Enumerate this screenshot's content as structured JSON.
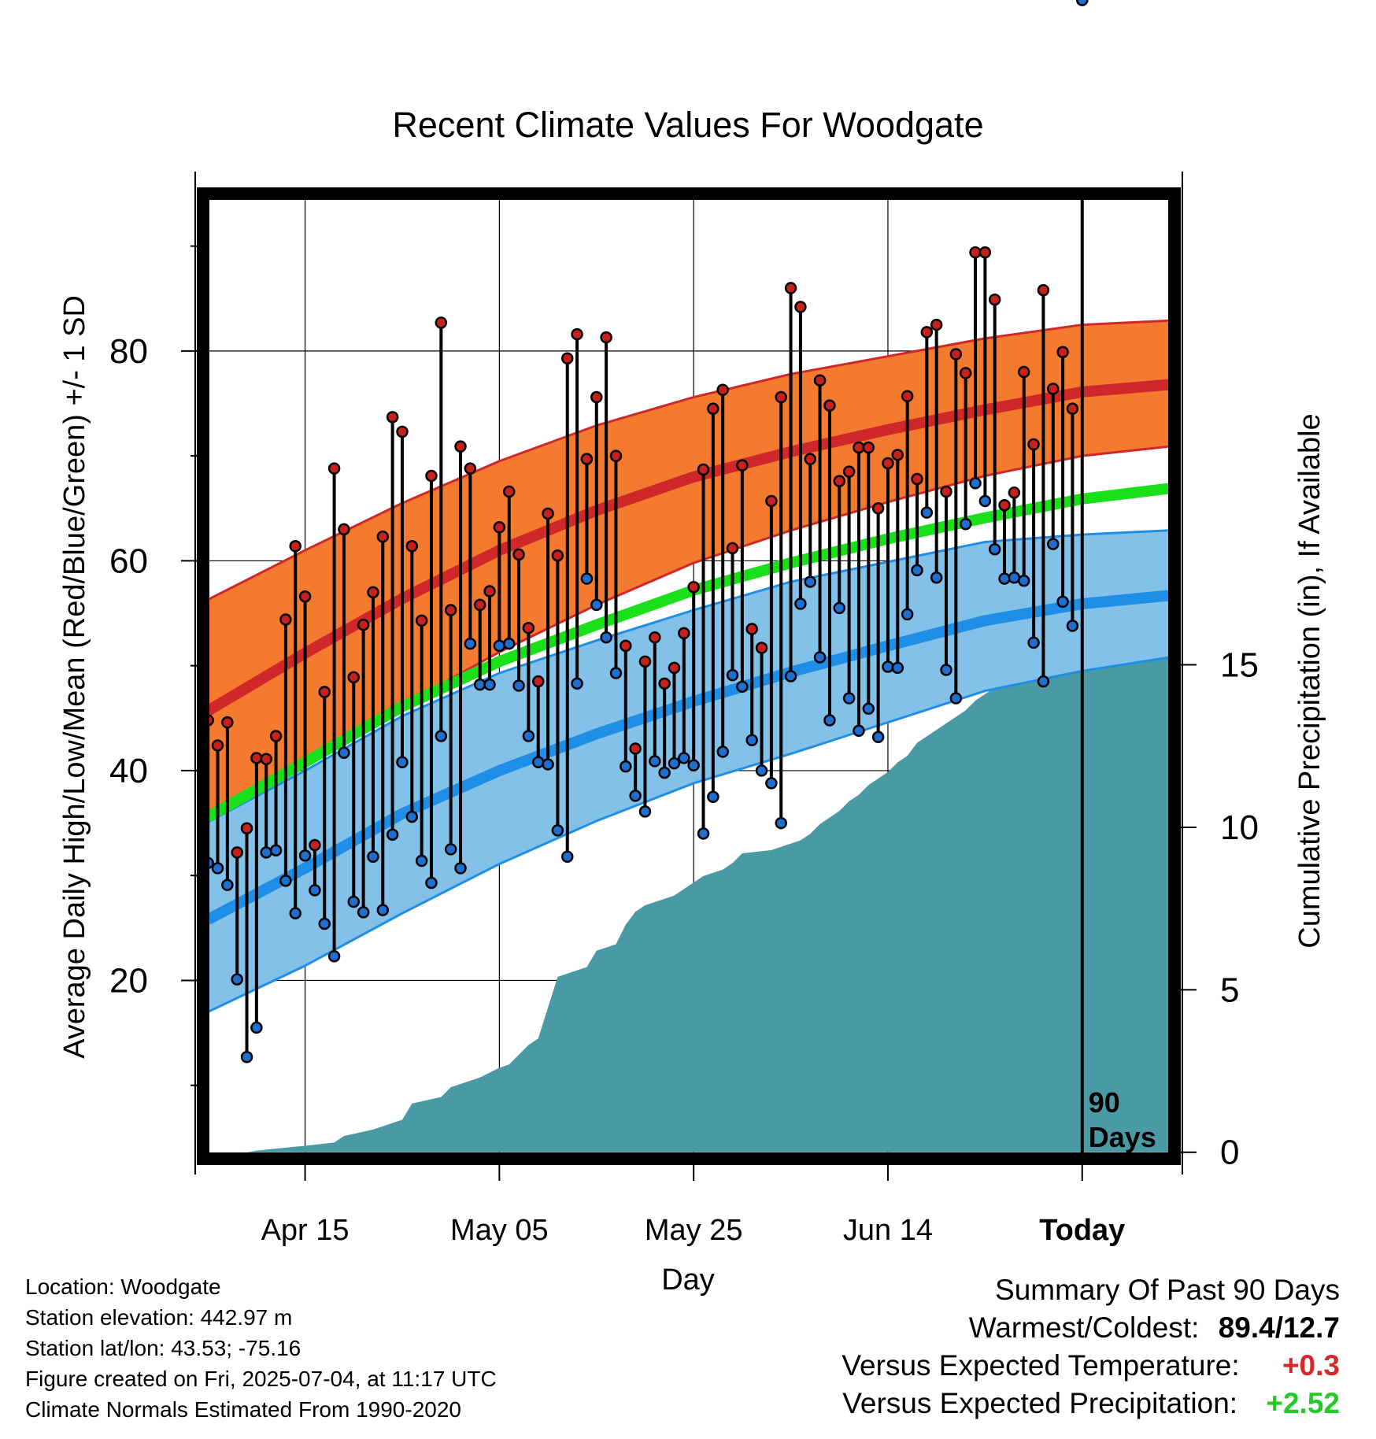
{
  "chart_data": {
    "type": "line",
    "title": "Recent Climate Values For Woodgate",
    "xlabel": "Day",
    "ylabel": "Average Daily High/Low/Mean (Red/Blue/Green) +/- 1 SD",
    "y2label": "Cumulative Precipitation (in), If Available",
    "x_tick_labels": [
      "Apr 15",
      "May 05",
      "May 25",
      "Jun 14",
      "Today"
    ],
    "x_tick_days": [
      10,
      30,
      50,
      70,
      90
    ],
    "xlim": [
      -0.5,
      99.5
    ],
    "ylim": [
      3,
      95
    ],
    "y_ticks": [
      20,
      40,
      60,
      80
    ],
    "y_minor_ticks": [
      10,
      30,
      50,
      70,
      90
    ],
    "y2lim": [
      -0.2,
      29.5
    ],
    "y2_ticks": [
      0,
      5,
      10,
      15
    ],
    "today_day": 90,
    "today_label": [
      "90",
      "Days"
    ],
    "grid": true,
    "colors": {
      "high_band": "#f37a2f",
      "high_line": "#d0282a",
      "low_band": "#83c1e8",
      "low_line": "#1f8ee6",
      "mean_line": "#19e019",
      "precip": "#4a9aa5",
      "high_marker": "#c8201d",
      "low_marker": "#1f6fd0",
      "versus_temp": "#d62828",
      "versus_precip": "#22cc22"
    },
    "normals": {
      "days": [
        0,
        10,
        20,
        30,
        40,
        50,
        60,
        70,
        80,
        90,
        99
      ],
      "high_mean": [
        45.7,
        51.2,
        56.4,
        61.0,
        64.8,
        68.0,
        70.4,
        72.5,
        74.4,
        76.1,
        76.8
      ],
      "high_plus_sd": [
        56.3,
        61.0,
        65.5,
        69.5,
        72.9,
        75.6,
        77.8,
        79.5,
        81.2,
        82.5,
        82.9
      ],
      "high_minus_sd": [
        34.9,
        40.8,
        46.2,
        51.3,
        55.8,
        59.8,
        62.9,
        65.6,
        68.1,
        70.0,
        70.9
      ],
      "mean": [
        35.6,
        40.8,
        46.1,
        50.4,
        53.9,
        57.2,
        59.8,
        62.1,
        64.1,
        65.9,
        66.9
      ],
      "low_mean": [
        25.8,
        30.7,
        35.9,
        40.0,
        43.5,
        46.6,
        49.4,
        51.9,
        54.3,
        55.9,
        56.7
      ],
      "low_plus_sd": [
        35.1,
        40.0,
        45.2,
        49.3,
        52.4,
        55.3,
        58.0,
        59.9,
        61.8,
        62.5,
        62.9
      ],
      "low_minus_sd": [
        17.0,
        21.4,
        26.4,
        31.1,
        35.2,
        38.8,
        41.6,
        44.6,
        47.6,
        49.5,
        50.8
      ]
    },
    "daily_days": [
      0,
      1,
      2,
      3,
      4,
      5,
      6,
      7,
      8,
      9,
      10,
      11,
      12,
      13,
      14,
      15,
      16,
      17,
      18,
      19,
      20,
      21,
      22,
      23,
      24,
      25,
      26,
      27,
      28,
      29,
      30,
      31,
      32,
      33,
      34,
      35,
      36,
      37,
      38,
      39,
      40,
      41,
      42,
      43,
      44,
      45,
      46,
      47,
      48,
      49,
      50,
      51,
      52,
      53,
      54,
      55,
      56,
      57,
      58,
      59,
      60,
      61,
      62,
      63,
      64,
      65,
      66,
      67,
      68,
      69,
      70,
      71,
      72,
      73,
      74,
      75,
      76,
      77,
      78,
      79,
      80,
      81,
      82,
      83,
      84,
      85,
      86,
      87,
      88,
      89,
      90
    ],
    "daily_high": [
      44.8,
      42.4,
      44.6,
      32.2,
      34.5,
      41.2,
      41.1,
      43.3,
      54.4,
      61.4,
      56.6,
      32.9,
      47.5,
      68.8,
      63.0,
      48.9,
      53.9,
      57.0,
      62.3,
      73.7,
      72.3,
      61.4,
      54.3,
      68.1,
      82.7,
      55.3,
      70.9,
      68.8,
      55.8,
      57.1,
      63.2,
      66.6,
      60.6,
      53.6,
      48.5,
      64.5,
      60.5,
      79.3,
      81.6,
      69.7,
      75.6,
      81.3,
      70.0,
      51.9,
      42.1,
      50.4,
      52.7,
      48.3,
      49.8,
      53.1,
      57.5,
      68.7,
      74.5,
      76.3,
      61.2,
      69.1,
      53.5,
      51.7,
      65.7,
      75.6,
      86.0,
      84.2,
      69.7,
      77.2,
      74.8,
      67.6,
      68.5,
      70.8,
      70.8,
      65.0,
      69.3,
      70.1,
      75.7,
      67.8,
      81.8,
      82.5,
      66.6,
      79.7,
      77.9,
      89.4,
      89.4,
      84.9,
      65.3,
      66.5,
      78.0,
      71.1,
      85.8,
      76.4,
      79.9,
      74.5
    ],
    "daily_low": [
      31.2,
      30.7,
      29.1,
      20.1,
      12.7,
      15.5,
      32.2,
      32.4,
      29.5,
      26.4,
      31.9,
      28.6,
      25.4,
      22.3,
      41.7,
      27.5,
      26.5,
      31.8,
      26.7,
      33.9,
      40.8,
      35.6,
      31.4,
      29.3,
      43.3,
      32.5,
      30.7,
      52.1,
      48.2,
      48.2,
      51.9,
      52.1,
      48.1,
      43.3,
      40.8,
      40.6,
      34.3,
      31.8,
      48.3,
      58.3,
      55.8,
      52.7,
      49.3,
      40.4,
      37.6,
      36.1,
      40.9,
      39.8,
      40.7,
      41.2,
      40.5,
      34.0,
      37.5,
      41.8,
      49.1,
      48.0,
      42.9,
      40.0,
      38.8,
      35.0,
      49.0,
      55.9,
      58.0,
      50.8,
      44.8,
      55.5,
      46.9,
      43.8,
      45.9,
      43.2,
      49.9,
      49.8,
      54.9,
      59.1,
      64.6,
      58.4,
      49.6,
      46.9,
      63.5,
      67.4,
      65.7,
      61.1,
      58.3,
      58.4,
      58.1,
      52.2,
      48.5,
      61.6,
      56.1,
      53.8
    ],
    "precip_days": [
      0,
      4,
      5,
      10,
      13,
      14,
      17,
      20,
      21,
      24,
      25,
      28,
      30,
      31,
      32,
      33,
      34,
      36,
      38,
      39,
      40,
      41,
      42,
      43,
      44,
      45,
      46,
      48,
      49,
      50,
      51,
      52,
      53,
      54,
      55,
      58,
      59,
      61,
      62,
      63,
      64,
      65,
      66,
      67,
      68,
      69,
      70,
      71,
      72,
      73,
      74,
      75,
      76,
      77,
      78,
      79,
      80,
      81,
      82,
      83,
      84,
      85,
      86,
      87,
      88,
      89,
      90,
      91,
      92,
      93,
      94,
      95,
      96,
      97,
      98,
      99
    ],
    "precip_values": [
      0,
      0,
      0.05,
      0.2,
      0.3,
      0.5,
      0.7,
      1.0,
      1.5,
      1.7,
      2.0,
      2.3,
      2.6,
      2.7,
      3.0,
      3.3,
      3.5,
      5.4,
      5.6,
      5.7,
      6.2,
      6.3,
      6.4,
      7.0,
      7.4,
      7.6,
      7.7,
      7.9,
      8.1,
      8.3,
      8.5,
      8.6,
      8.7,
      8.9,
      9.2,
      9.3,
      9.4,
      9.6,
      9.8,
      10.1,
      10.3,
      10.5,
      10.8,
      11.0,
      11.3,
      11.5,
      11.7,
      12.0,
      12.2,
      12.6,
      12.8,
      13.0,
      13.2,
      13.4,
      13.6,
      13.9,
      14.1,
      14.3,
      14.5,
      14.7,
      14.9,
      15.1,
      15.3,
      15.5,
      15.7,
      15.9,
      16.1,
      16.3,
      16.5,
      16.7,
      16.9,
      17.1,
      17.3,
      17.5,
      17.7,
      17.9
    ]
  },
  "info": {
    "location": "Location: Woodgate",
    "elevation": "Station elevation: 442.97 m",
    "latlon": "Station lat/lon: 43.53; -75.16",
    "created": "Figure created on Fri, 2025-07-04, at 11:17 UTC",
    "normals": "Climate Normals Estimated From 1990-2020"
  },
  "summary": {
    "heading": "Summary Of Past 90 Days",
    "warmest_coldest_label": "Warmest/Coldest:",
    "warmest_coldest_value": "89.4/12.7",
    "versus_temp_label": "Versus Expected Temperature:",
    "versus_temp_value": "+0.3",
    "versus_precip_label": "Versus Expected Precipitation:",
    "versus_precip_value": "+2.52"
  }
}
